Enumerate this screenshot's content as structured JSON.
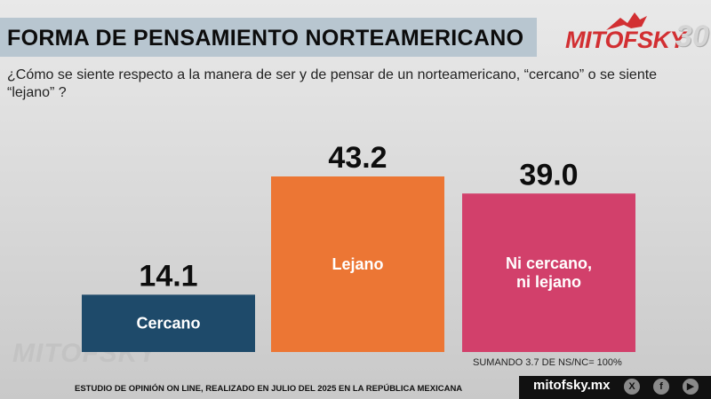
{
  "header": {
    "title": "FORMA DE PENSAMIENTO NORTEAMERICANO",
    "question": "¿Cómo se siente respecto a la manera de ser y de pensar de un norteamericano, “cercano” o se siente “lejano” ?"
  },
  "brand": {
    "logo_text": "MITOFSKY",
    "logo_number": "30",
    "watermark": "MITOFSKY",
    "site": "mitofsky.mx",
    "social_icons": [
      "x-icon",
      "facebook-icon",
      "youtube-icon"
    ],
    "red": "#d22f32"
  },
  "footnote": "SUMANDO 3.7 DE NS/NC= 100%",
  "source": "ESTUDIO DE OPINIÓN ON LINE, REALIZADO EN JULIO DEL 2025 EN LA REPÚBLICA MEXICANA",
  "chart_data": {
    "type": "bar",
    "title": "FORMA DE PENSAMIENTO NORTEAMERICANO",
    "categories": [
      "Cercano",
      "Lejano",
      "Ni cercano, ni lejano"
    ],
    "category_lines": [
      [
        "Cercano"
      ],
      [
        "Lejano"
      ],
      [
        "Ni cercano,",
        "ni lejano"
      ]
    ],
    "values": [
      14.1,
      43.2,
      39.0
    ],
    "value_labels": [
      "14.1",
      "43.2",
      "39.0"
    ],
    "colors": [
      "#1e4a6a",
      "#ec7634",
      "#d2406b"
    ],
    "ylim": [
      0,
      43.2
    ],
    "xlabel": "",
    "ylabel": "",
    "grid": false
  }
}
